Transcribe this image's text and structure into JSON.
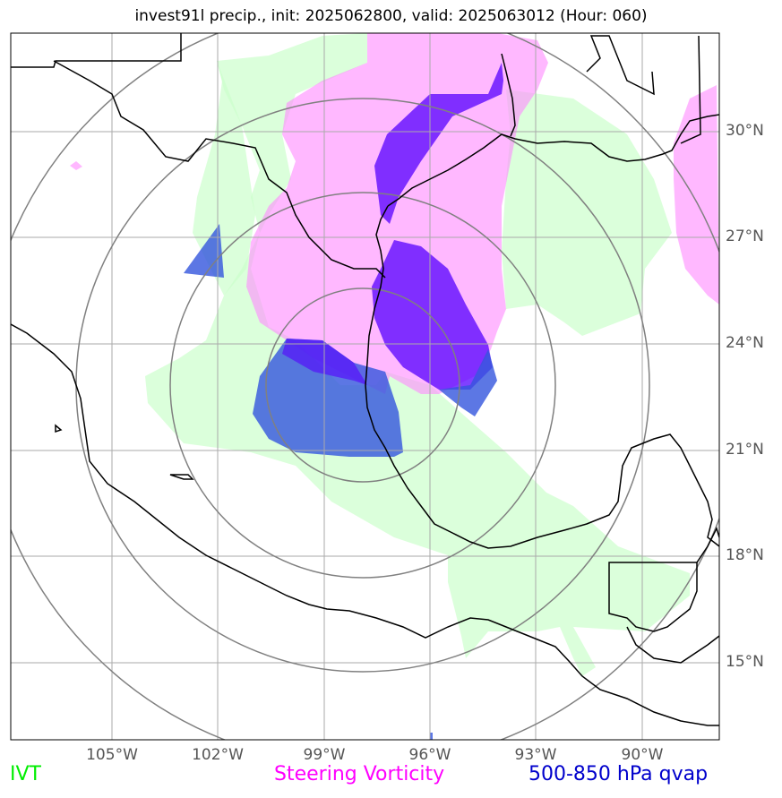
{
  "title": "invest91l precip., init: 2025062800, valid: 2025063012 (Hour: 060)",
  "lat_labels": [
    "30°N",
    "27°N",
    "24°N",
    "21°N",
    "18°N",
    "15°N"
  ],
  "lon_labels": [
    "105°W",
    "102°W",
    "99°W",
    "96°W",
    "93°W",
    "90°W"
  ],
  "legend": {
    "ivt": "IVT",
    "vorticity": "Steering Vorticity",
    "qvap": "500-850 hPa qvap"
  },
  "colors": {
    "ivt": "#ccffcc",
    "vorticity": "#ff99ff",
    "qvap_dark": "#5500ff",
    "qvap_light": "#3355dd",
    "grid": "#aaaaaa",
    "range_rings": "#808080",
    "coast": "#000000"
  }
}
